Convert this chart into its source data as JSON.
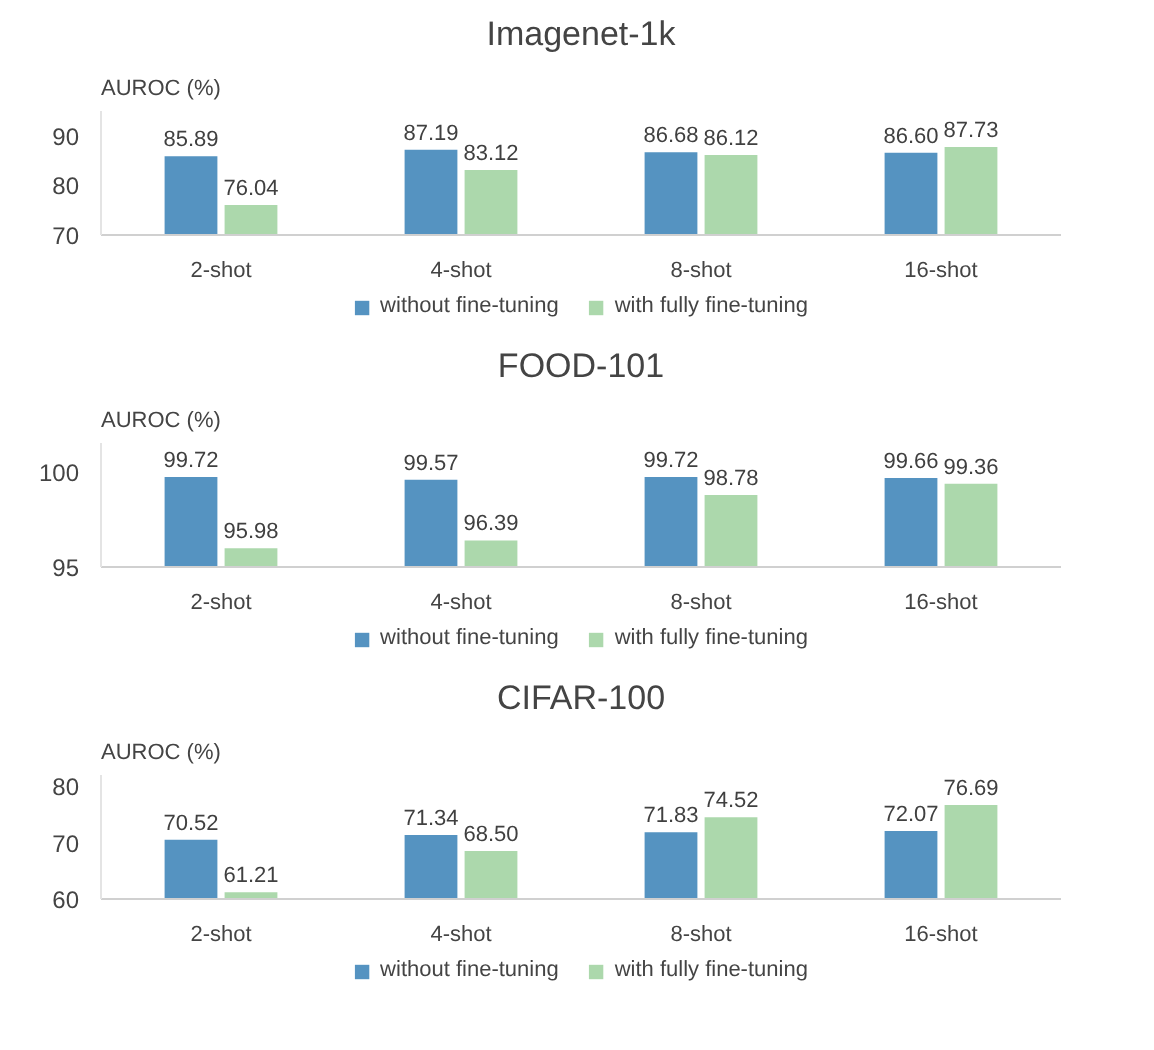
{
  "chart_data": [
    {
      "type": "bar",
      "title": "Imagenet-1k",
      "ylabel": "AUROC (%)",
      "categories": [
        "2-shot",
        "4-shot",
        "8-shot",
        "16-shot"
      ],
      "ylim": [
        70,
        95
      ],
      "yticks": [
        70,
        80,
        90
      ],
      "grid": false,
      "legend": "bottom",
      "series": [
        {
          "name": "without fine-tuning",
          "color": "#5593c1",
          "values": [
            85.89,
            87.19,
            86.68,
            86.6
          ],
          "value_labels": [
            "85.89",
            "87.19",
            "86.68",
            "86.60"
          ]
        },
        {
          "name": "with fully fine-tuning",
          "color": "#acd8ac",
          "values": [
            76.04,
            83.12,
            86.12,
            87.73
          ],
          "value_labels": [
            "76.04",
            "83.12",
            "86.12",
            "87.73"
          ]
        }
      ]
    },
    {
      "type": "bar",
      "title": "FOOD-101",
      "ylabel": "AUROC (%)",
      "categories": [
        "2-shot",
        "4-shot",
        "8-shot",
        "16-shot"
      ],
      "ylim": [
        95,
        101.5
      ],
      "yticks": [
        95,
        100
      ],
      "grid": false,
      "legend": "bottom",
      "series": [
        {
          "name": "without fine-tuning",
          "color": "#5593c1",
          "values": [
            99.72,
            99.57,
            99.72,
            99.66
          ],
          "value_labels": [
            "99.72",
            "99.57",
            "99.72",
            "99.66"
          ]
        },
        {
          "name": "with fully fine-tuning",
          "color": "#acd8ac",
          "values": [
            95.98,
            96.39,
            98.78,
            99.36
          ],
          "value_labels": [
            "95.98",
            "96.39",
            "98.78",
            "99.36"
          ]
        }
      ]
    },
    {
      "type": "bar",
      "title": "CIFAR-100",
      "ylabel": "AUROC (%)",
      "categories": [
        "2-shot",
        "4-shot",
        "8-shot",
        "16-shot"
      ],
      "ylim": [
        60,
        82
      ],
      "yticks": [
        60,
        70,
        80
      ],
      "grid": false,
      "legend": "bottom",
      "series": [
        {
          "name": "without fine-tuning",
          "color": "#5593c1",
          "values": [
            70.52,
            71.34,
            71.83,
            72.07
          ],
          "value_labels": [
            "70.52",
            "71.34",
            "71.83",
            "72.07"
          ]
        },
        {
          "name": "with fully fine-tuning",
          "color": "#acd8ac",
          "values": [
            61.21,
            68.5,
            74.52,
            76.69
          ],
          "value_labels": [
            "61.21",
            "68.50",
            "74.52",
            "76.69"
          ]
        }
      ]
    }
  ]
}
